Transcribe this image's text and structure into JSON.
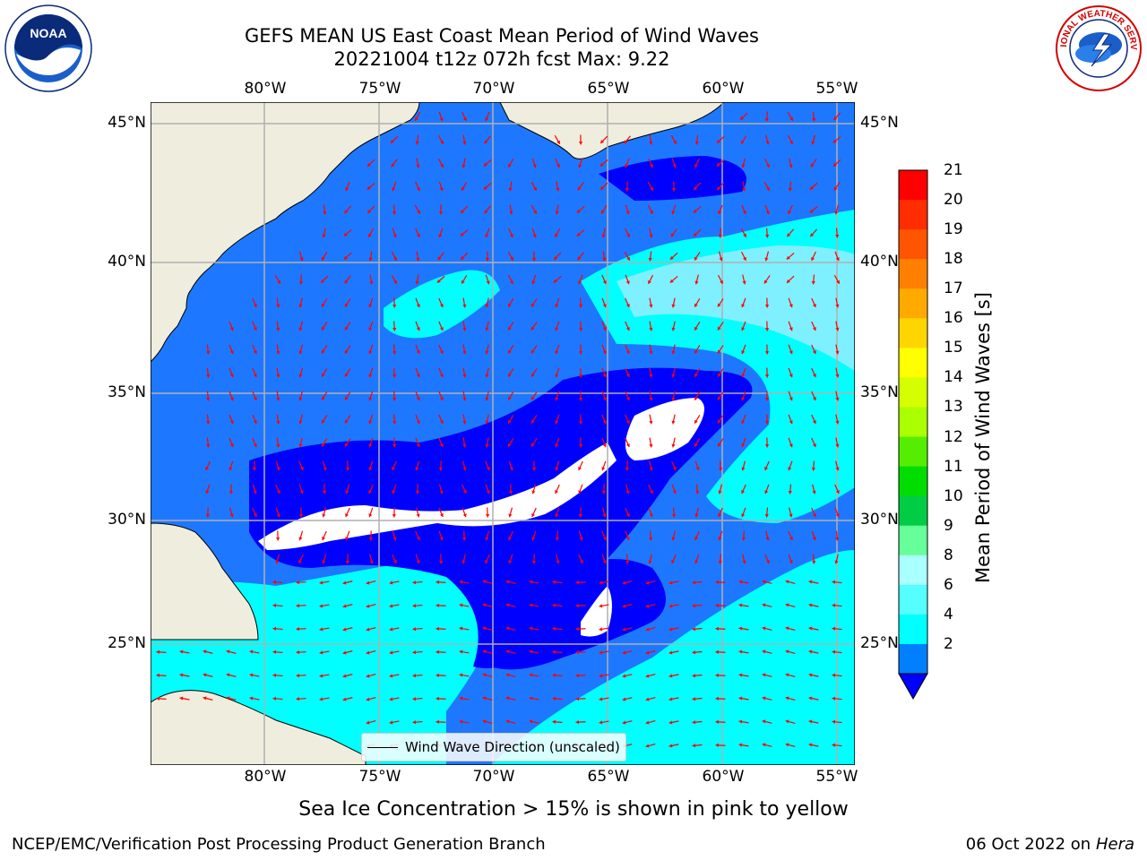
{
  "title": {
    "line1": "GEFS MEAN US East Coast Mean Period of Wind Waves",
    "line2": "20221004 t12z 072h fcst   Max: 9.22"
  },
  "axes": {
    "lon_ticks": [
      "80°W",
      "75°W",
      "70°W",
      "65°W",
      "60°W",
      "55°W"
    ],
    "lat_ticks": [
      "45°N",
      "40°N",
      "35°N",
      "30°N",
      "25°N"
    ]
  },
  "colorbar": {
    "label": "Mean Period of Wind Waves [s]",
    "ticks": [
      "21",
      "20",
      "19",
      "18",
      "17",
      "16",
      "15",
      "14",
      "13",
      "12",
      "11",
      "10",
      "9",
      "8",
      "6",
      "4",
      "2"
    ],
    "colors": [
      "#ff0000",
      "#ff2d00",
      "#ff5500",
      "#ff8000",
      "#ffaa00",
      "#ffd500",
      "#ffff00",
      "#d5ff00",
      "#aaff00",
      "#55ee00",
      "#00dd00",
      "#00cc44",
      "#66ff99",
      "#aaffff",
      "#55ffff",
      "#00ffff",
      "#0080ff"
    ],
    "under_color": "#0000ff"
  },
  "legend": {
    "label": "Wind Wave Direction (unscaled)"
  },
  "subtitle": "Sea Ice Concentration > 15% is shown in pink to yellow",
  "footer": {
    "left": "NCEP/EMC/Verification Post Processing Product Generation Branch",
    "date": "06 Oct 2022 on",
    "host": "Hera"
  },
  "logos": {
    "left": "NOAA",
    "right": "NATIONAL WEATHER SERVICE"
  },
  "map_colors": {
    "land": "#efedde",
    "very_low": "#0000ff",
    "low": "#1e78ff",
    "mid": "#00ffff",
    "high": "#7ff0ff",
    "arrow": "#ff0000"
  }
}
